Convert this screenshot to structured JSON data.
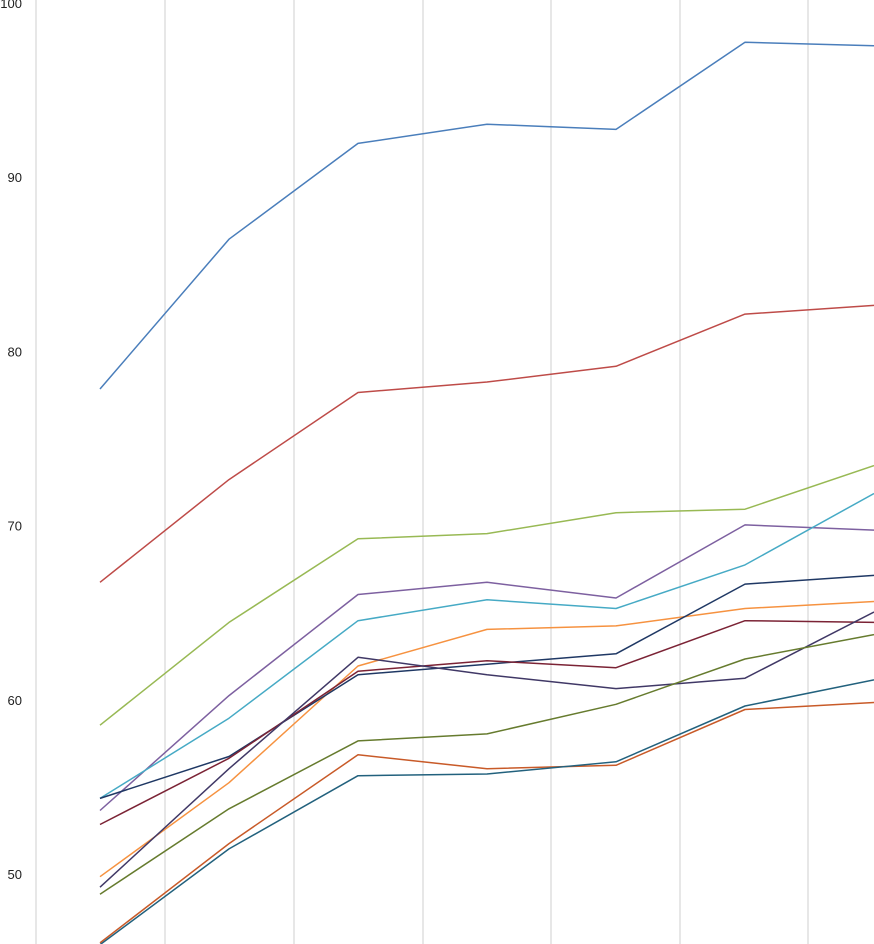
{
  "chart_data": {
    "type": "line",
    "title": "",
    "xlabel": "",
    "ylabel": "",
    "ylim": [
      46,
      100
    ],
    "yticks": [
      "50",
      "60",
      "70",
      "80",
      "90",
      "100"
    ],
    "x": [
      1,
      2,
      3,
      4,
      5,
      6,
      7
    ],
    "grid": "vertical",
    "series": [
      {
        "color": "#4a7ebb",
        "values": [
          77.9,
          86.5,
          92.0,
          93.1,
          92.8,
          97.8,
          97.6
        ]
      },
      {
        "color": "#be4b48",
        "values": [
          66.8,
          72.7,
          77.7,
          78.3,
          79.2,
          82.2,
          82.7
        ]
      },
      {
        "color": "#98b954",
        "values": [
          58.6,
          64.5,
          69.3,
          69.6,
          70.8,
          71.0,
          73.5
        ]
      },
      {
        "color": "#7d60a0",
        "values": [
          53.7,
          60.3,
          66.1,
          66.8,
          65.9,
          70.1,
          69.8
        ]
      },
      {
        "color": "#46aac5",
        "values": [
          54.4,
          59.0,
          64.6,
          65.8,
          65.3,
          67.8,
          71.9
        ]
      },
      {
        "color": "#f69240",
        "values": [
          49.9,
          55.3,
          62.0,
          64.1,
          64.3,
          65.3,
          65.7
        ]
      },
      {
        "color": "#1f3864",
        "values": [
          54.4,
          56.8,
          61.5,
          62.1,
          62.7,
          66.7,
          67.2
        ]
      },
      {
        "color": "#7b2335",
        "values": [
          52.9,
          56.7,
          61.7,
          62.3,
          61.9,
          64.6,
          64.5
        ]
      },
      {
        "color": "#403866",
        "values": [
          49.3,
          56.1,
          62.5,
          61.5,
          60.7,
          61.3,
          65.1
        ]
      },
      {
        "color": "#667b2e",
        "values": [
          48.9,
          53.8,
          57.7,
          58.1,
          59.8,
          62.4,
          63.8
        ]
      },
      {
        "color": "#c85a28",
        "values": [
          46.1,
          51.8,
          56.9,
          56.1,
          56.3,
          59.5,
          59.9
        ]
      },
      {
        "color": "#22617d",
        "values": [
          46.0,
          51.5,
          55.7,
          55.8,
          56.5,
          59.7,
          61.2
        ]
      }
    ]
  }
}
